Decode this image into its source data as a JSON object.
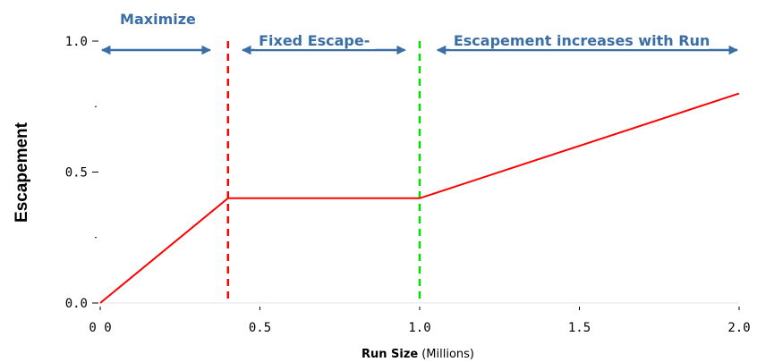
{
  "chart_data": {
    "type": "line",
    "title": "",
    "ylabel": "Escapement",
    "xlabel": "Run Size",
    "xlabel_unit": "(Millions)",
    "xlim": [
      0,
      2
    ],
    "ylim": [
      0,
      1
    ],
    "x_ticks": [
      0,
      0.5,
      1,
      1.5,
      2
    ],
    "x_tick_labels": [
      "0 0",
      "0.5",
      "1.0",
      "1.5",
      "2.0"
    ],
    "y_ticks": [
      0,
      0.25,
      0.5,
      0.75,
      1
    ],
    "y_tick_labels": [
      "0.0",
      "",
      "0.5",
      "",
      "1.0"
    ],
    "grid": false,
    "series": [
      {
        "x": [
          0,
          0.4,
          0.4,
          1.0,
          2.0
        ],
        "y": [
          0,
          0.4,
          0.4,
          0.4,
          0.8
        ],
        "color": "#ff0000"
      }
    ],
    "vlines": [
      {
        "x": 0.4,
        "color": "#ff0000",
        "style": "dashed"
      },
      {
        "x": 1.0,
        "color": "#00dd00",
        "style": "dashed"
      }
    ],
    "annotations": [
      {
        "text": "Maximize",
        "x_start": 0.0,
        "x_end": 0.35
      },
      {
        "text": "Fixed Escape-",
        "x_start": 0.44,
        "x_end": 0.96
      },
      {
        "text": "Escapement increases with Run",
        "x_start": 1.05,
        "x_end": 2.0
      }
    ],
    "annotation_color": "#3a6ea5"
  }
}
